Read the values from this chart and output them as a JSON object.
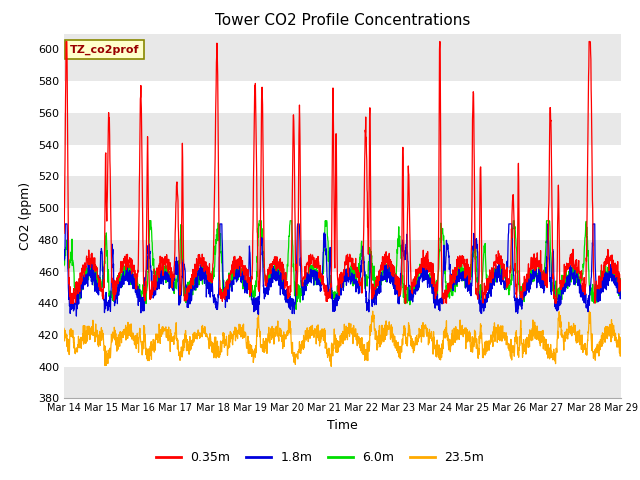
{
  "title": "Tower CO2 Profile Concentrations",
  "xlabel": "Time",
  "ylabel": "CO2 (ppm)",
  "ylim": [
    380,
    610
  ],
  "yticks": [
    380,
    400,
    420,
    440,
    460,
    480,
    500,
    520,
    540,
    560,
    580,
    600
  ],
  "legend_label": "TZ_co2prof",
  "series_labels": [
    "0.35m",
    "1.8m",
    "6.0m",
    "23.5m"
  ],
  "series_colors": [
    "#ff0000",
    "#0000dd",
    "#00dd00",
    "#ffaa00"
  ],
  "plot_bg_color": "#e8e8e8",
  "fig_bg_color": "#ffffff",
  "n_days": 15,
  "start_day": 14,
  "points_per_day": 144,
  "seed": 7
}
